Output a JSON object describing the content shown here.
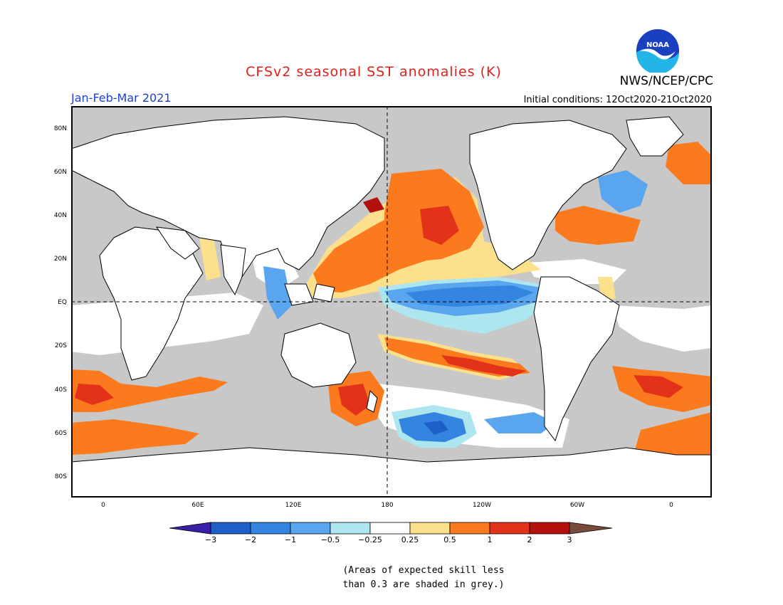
{
  "title": "CFSv2 seasonal SST anomalies (K)",
  "period": "Jan-Feb-Mar 2021",
  "initial_conditions": "Initial conditions: 12Oct2020-21Oct2020",
  "agency": "NWS/NCEP/CPC",
  "logo_text": "NOAA",
  "lat_labels": [
    "80N",
    "60N",
    "40N",
    "20N",
    "EQ",
    "20S",
    "40S",
    "60S",
    "80S"
  ],
  "lon_labels": [
    "0",
    "60E",
    "120E",
    "180",
    "120W",
    "60W",
    "0"
  ],
  "colorbar": {
    "ticks": [
      "−3",
      "−2",
      "−1",
      "−0.5",
      "−0.25",
      "0.25",
      "0.5",
      "1",
      "2",
      "3"
    ],
    "colors": [
      "#3a1fa8",
      "#1f5fc8",
      "#3385e0",
      "#5aa6ee",
      "#aee6f0",
      "#ffffff",
      "#fde08c",
      "#fb7a1e",
      "#e3321a",
      "#b3100e",
      "#7a4a3a"
    ]
  },
  "note_line1": "(Areas of expected skill less",
  "note_line2": "than 0.3 are shaded in grey.)",
  "colors": {
    "land": "#ffffff",
    "no_skill": "#c8c8c8",
    "title": "#e0201c",
    "period": "#1f3fcf"
  }
}
